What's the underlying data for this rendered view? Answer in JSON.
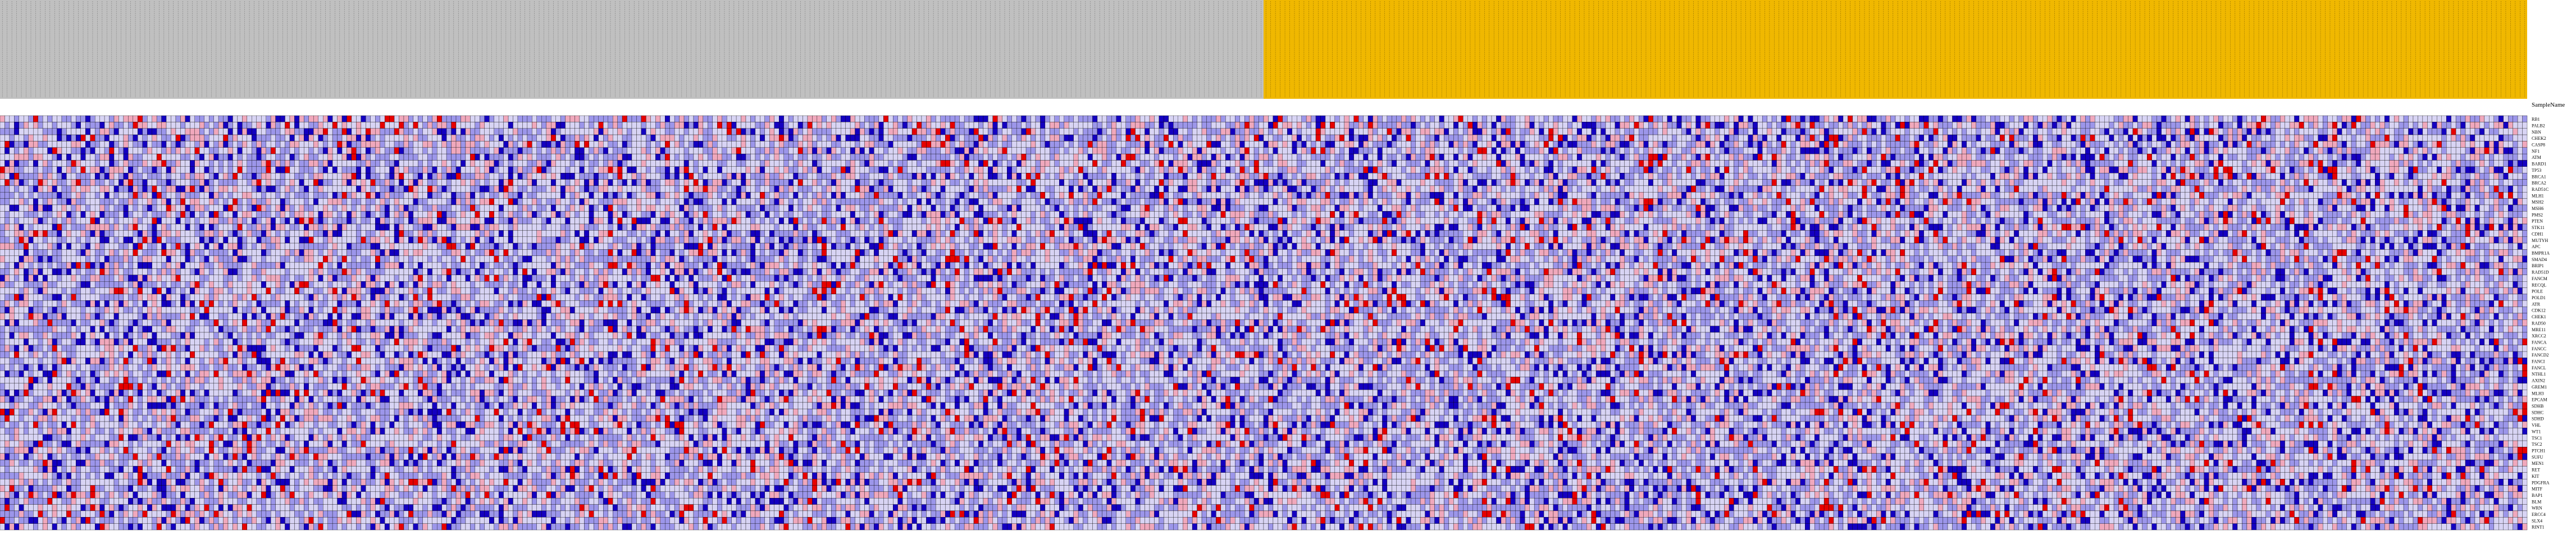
{
  "chart_data": {
    "type": "heatmap",
    "title": "",
    "xlabel": "",
    "ylabel": "",
    "header_label": "SampleName",
    "groups": [
      {
        "count": 266,
        "color": "#c0c0c0"
      },
      {
        "count": 266,
        "color": "#f0b800"
      }
    ],
    "row_labels": [
      "RB1",
      "PALB2",
      "NBN",
      "CHEK2",
      "CASP8",
      "NF1",
      "ATM",
      "BARD1",
      "TP53",
      "BRCA1",
      "BRCA2",
      "RAD51C",
      "MLH1",
      "MSH2",
      "MSH6",
      "PMS2",
      "PTEN",
      "STK11",
      "CDH1",
      "MUTYH",
      "APC",
      "BMPR1A",
      "SMAD4",
      "BRIP1",
      "RAD51D",
      "FANCM",
      "RECQL",
      "POLE",
      "POLD1",
      "ATR",
      "CDK12",
      "CHEK1",
      "RAD50",
      "MRE11",
      "XRCC2",
      "FANCA",
      "FANCC",
      "FANCD2",
      "FANCI",
      "FANCL",
      "NTHL1",
      "AXIN2",
      "GREM1",
      "MLH3",
      "EPCAM",
      "SDHB",
      "SDHC",
      "SDHD",
      "VHL",
      "WT1",
      "TSC1",
      "TSC2",
      "PTCH1",
      "SUFU",
      "MEN1",
      "RET",
      "KIT",
      "PDGFRA",
      "MITF",
      "BAP1",
      "BLM",
      "WRN",
      "ERCC4",
      "SLX4",
      "RINT1"
    ],
    "color_scale": {
      "low": "#1400c0",
      "mid_low": "#9c96ea",
      "mid": "#d8d4f4",
      "mid_high": "#f0a8bc",
      "high": "#e60000"
    }
  }
}
